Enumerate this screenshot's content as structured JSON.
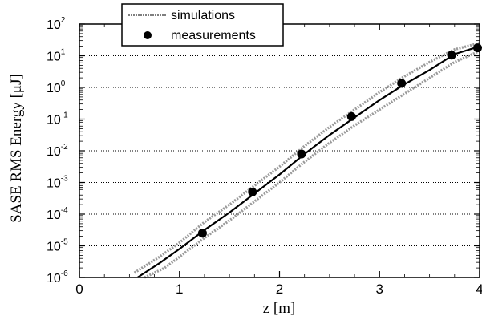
{
  "chart_data": {
    "type": "line",
    "xlabel": "z [m]",
    "ylabel": "SASE RMS Energy [μJ]",
    "xlim": [
      0,
      4
    ],
    "ylim_log10": [
      -6,
      2
    ],
    "y_scale": "log",
    "grid": "horizontal dotted",
    "legend_position": "top-left",
    "x_ticks": [
      "0",
      "1",
      "2",
      "3",
      "4"
    ],
    "y_ticks": [
      {
        "base": "10",
        "exp": "2",
        "log10": 2
      },
      {
        "base": "10",
        "exp": "1",
        "log10": 1
      },
      {
        "base": "10",
        "exp": "0",
        "log10": 0
      },
      {
        "base": "10",
        "exp": "-1",
        "log10": -1
      },
      {
        "base": "10",
        "exp": "-2",
        "log10": -2
      },
      {
        "base": "10",
        "exp": "-3",
        "log10": -3
      },
      {
        "base": "10",
        "exp": "-4",
        "log10": -4
      },
      {
        "base": "10",
        "exp": "-5",
        "log10": -5
      },
      {
        "base": "10",
        "exp": "-6",
        "log10": -6
      }
    ],
    "legend": [
      {
        "label": "simulations",
        "style": "line"
      },
      {
        "label": "measurements",
        "style": "marker"
      }
    ],
    "series": [
      {
        "name": "simulations",
        "style": "solid-black",
        "points": [
          [
            0.58,
            -6.0
          ],
          [
            0.8,
            -5.55
          ],
          [
            1.0,
            -5.1
          ],
          [
            1.25,
            -4.5
          ],
          [
            1.5,
            -3.95
          ],
          [
            1.75,
            -3.35
          ],
          [
            2.0,
            -2.75
          ],
          [
            2.25,
            -2.1
          ],
          [
            2.5,
            -1.5
          ],
          [
            2.75,
            -0.95
          ],
          [
            3.0,
            -0.4
          ],
          [
            3.25,
            0.1
          ],
          [
            3.5,
            0.55
          ],
          [
            3.75,
            1.05
          ],
          [
            4.0,
            1.3
          ]
        ]
      },
      {
        "name": "simulations",
        "style": "gray-band-upper",
        "points": [
          [
            0.55,
            -5.85
          ],
          [
            0.8,
            -5.35
          ],
          [
            1.0,
            -4.9
          ],
          [
            1.25,
            -4.25
          ],
          [
            1.5,
            -3.7
          ],
          [
            1.75,
            -3.1
          ],
          [
            2.0,
            -2.5
          ],
          [
            2.25,
            -1.85
          ],
          [
            2.5,
            -1.25
          ],
          [
            2.75,
            -0.7
          ],
          [
            3.0,
            -0.15
          ],
          [
            3.25,
            0.35
          ],
          [
            3.5,
            0.8
          ],
          [
            3.75,
            1.2
          ],
          [
            4.0,
            1.4
          ]
        ]
      },
      {
        "name": "simulations",
        "style": "gray-band-lower",
        "points": [
          [
            0.65,
            -6.0
          ],
          [
            0.85,
            -5.7
          ],
          [
            1.0,
            -5.35
          ],
          [
            1.25,
            -4.75
          ],
          [
            1.5,
            -4.2
          ],
          [
            1.75,
            -3.6
          ],
          [
            2.0,
            -3.0
          ],
          [
            2.25,
            -2.35
          ],
          [
            2.5,
            -1.75
          ],
          [
            2.75,
            -1.2
          ],
          [
            3.0,
            -0.7
          ],
          [
            3.25,
            -0.2
          ],
          [
            3.5,
            0.3
          ],
          [
            3.75,
            0.8
          ],
          [
            4.0,
            1.15
          ]
        ]
      },
      {
        "name": "measurements",
        "style": "marker",
        "points": [
          [
            1.23,
            -4.6
          ],
          [
            1.73,
            -3.3
          ],
          [
            2.22,
            -2.1
          ],
          [
            2.72,
            -0.92
          ],
          [
            3.22,
            0.13
          ],
          [
            3.72,
            1.02
          ],
          [
            3.98,
            1.25
          ]
        ]
      }
    ]
  }
}
